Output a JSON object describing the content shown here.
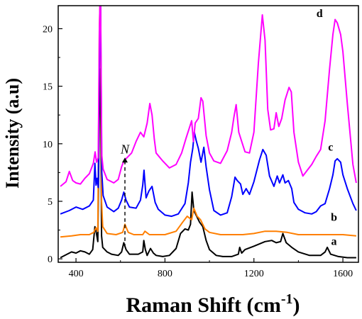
{
  "chart_data": {
    "type": "line",
    "xlabel": "Raman Shift (cm",
    "xlabel_sup": "-1",
    "xlabel_close": ")",
    "ylabel": "Intensity (a.u)",
    "xlim": [
      320,
      1670
    ],
    "ylim": [
      -0.3,
      22
    ],
    "xticks": [
      400,
      800,
      1200,
      1600
    ],
    "yticks": [
      0,
      5,
      10,
      15,
      20
    ],
    "grid": false,
    "colors": {
      "a": "#000000",
      "b": "#ff7f00",
      "c": "#0000ff",
      "d": "#ff00ff"
    },
    "annotation": {
      "label": "N",
      "x": 620,
      "y_from": 1.0,
      "y_to": 8.8
    },
    "series": [
      {
        "name": "a",
        "x": [
          330,
          360,
          380,
          400,
          420,
          440,
          460,
          475,
          485,
          492,
          498,
          505,
          510,
          515,
          520,
          540,
          560,
          590,
          605,
          615,
          625,
          640,
          680,
          700,
          705,
          712,
          720,
          735,
          748,
          760,
          790,
          820,
          850,
          870,
          890,
          905,
          915,
          922,
          930,
          940,
          955,
          970,
          985,
          1000,
          1030,
          1060,
          1100,
          1130,
          1136,
          1145,
          1160,
          1200,
          1250,
          1280,
          1300,
          1320,
          1330,
          1345,
          1370,
          1400,
          1450,
          1500,
          1520,
          1530,
          1545,
          1580,
          1620,
          1660
        ],
        "y": [
          0.1,
          0.4,
          0.6,
          0.5,
          0.7,
          0.6,
          0.4,
          0.8,
          2.8,
          2.2,
          1.5,
          13.0,
          16.5,
          2.0,
          1.0,
          0.6,
          0.4,
          0.3,
          0.6,
          1.4,
          0.8,
          0.4,
          0.4,
          0.6,
          1.6,
          0.8,
          0.3,
          0.9,
          0.5,
          0.3,
          0.2,
          0.3,
          0.9,
          2.2,
          2.6,
          2.5,
          3.0,
          5.8,
          4.2,
          3.8,
          3.2,
          2.8,
          1.6,
          0.8,
          0.3,
          0.2,
          0.2,
          0.4,
          1.0,
          0.5,
          0.8,
          1.1,
          1.5,
          1.6,
          1.4,
          1.5,
          2.2,
          1.4,
          1.0,
          0.6,
          0.3,
          0.3,
          0.6,
          1.0,
          0.4,
          0.2,
          0.1,
          0.1
        ]
      },
      {
        "name": "b",
        "x": [
          330,
          380,
          420,
          460,
          480,
          490,
          498,
          505,
          510,
          515,
          520,
          540,
          580,
          610,
          620,
          635,
          660,
          700,
          710,
          730,
          760,
          800,
          850,
          880,
          900,
          920,
          930,
          945,
          960,
          980,
          1000,
          1050,
          1100,
          1150,
          1200,
          1250,
          1300,
          1350,
          1400,
          1450,
          1500,
          1550,
          1600,
          1660
        ],
        "y": [
          1.9,
          2.0,
          2.1,
          2.1,
          2.3,
          2.7,
          2.4,
          20.0,
          24.0,
          5.0,
          2.8,
          2.2,
          2.1,
          2.3,
          3.0,
          2.3,
          2.1,
          2.1,
          2.4,
          2.1,
          2.1,
          2.1,
          2.4,
          3.2,
          3.7,
          3.4,
          4.4,
          3.7,
          3.4,
          2.6,
          2.3,
          2.1,
          2.1,
          2.1,
          2.2,
          2.4,
          2.4,
          2.3,
          2.1,
          2.1,
          2.1,
          2.1,
          2.1,
          2.0
        ]
      },
      {
        "name": "c",
        "x": [
          330,
          370,
          400,
          430,
          460,
          478,
          485,
          490,
          495,
          500,
          505,
          510,
          516,
          522,
          540,
          570,
          590,
          605,
          615,
          625,
          640,
          670,
          690,
          700,
          706,
          715,
          728,
          742,
          756,
          770,
          800,
          830,
          860,
          890,
          905,
          915,
          925,
          932,
          940,
          950,
          962,
          975,
          985,
          1000,
          1020,
          1050,
          1080,
          1100,
          1115,
          1125,
          1140,
          1150,
          1165,
          1180,
          1200,
          1225,
          1240,
          1255,
          1270,
          1290,
          1305,
          1315,
          1330,
          1340,
          1355,
          1370,
          1380,
          1400,
          1430,
          1460,
          1480,
          1500,
          1520,
          1540,
          1555,
          1565,
          1575,
          1590,
          1600,
          1620,
          1645,
          1660
        ],
        "y": [
          3.9,
          4.2,
          4.5,
          4.3,
          4.6,
          5.1,
          8.3,
          6.4,
          7.0,
          6.2,
          17.0,
          24.0,
          7.5,
          5.5,
          4.5,
          4.1,
          4.4,
          5.1,
          5.8,
          5.1,
          4.5,
          4.4,
          5.1,
          6.4,
          7.7,
          5.3,
          5.9,
          6.3,
          4.9,
          4.3,
          3.8,
          3.7,
          3.9,
          4.8,
          6.6,
          8.4,
          9.6,
          11.0,
          10.3,
          9.6,
          8.4,
          9.7,
          8.0,
          6.0,
          4.2,
          3.8,
          4.0,
          5.4,
          7.1,
          6.8,
          6.5,
          5.6,
          6.1,
          5.6,
          6.7,
          8.6,
          9.5,
          9.0,
          7.2,
          6.3,
          7.2,
          6.6,
          7.3,
          6.6,
          6.8,
          6.1,
          4.9,
          4.3,
          4.0,
          3.9,
          4.1,
          4.6,
          4.8,
          6.1,
          7.3,
          8.5,
          8.7,
          8.4,
          7.3,
          6.1,
          4.8,
          4.2
        ]
      },
      {
        "name": "d",
        "x": [
          330,
          355,
          370,
          385,
          400,
          420,
          440,
          460,
          478,
          486,
          492,
          500,
          505,
          510,
          516,
          522,
          540,
          570,
          590,
          605,
          615,
          630,
          650,
          670,
          690,
          705,
          720,
          732,
          742,
          752,
          760,
          790,
          820,
          850,
          875,
          895,
          910,
          920,
          928,
          936,
          950,
          962,
          970,
          985,
          1000,
          1020,
          1050,
          1080,
          1100,
          1110,
          1120,
          1132,
          1145,
          1160,
          1180,
          1200,
          1220,
          1238,
          1250,
          1262,
          1275,
          1290,
          1300,
          1312,
          1325,
          1340,
          1358,
          1368,
          1380,
          1400,
          1420,
          1440,
          1460,
          1480,
          1500,
          1520,
          1540,
          1555,
          1565,
          1575,
          1590,
          1600,
          1620,
          1645,
          1660
        ],
        "y": [
          6.3,
          6.7,
          7.6,
          6.8,
          6.6,
          6.5,
          7.0,
          7.4,
          8.3,
          9.3,
          8.4,
          8.8,
          20.0,
          24.0,
          9.0,
          7.8,
          6.9,
          6.6,
          6.9,
          8.0,
          8.5,
          8.8,
          9.2,
          10.2,
          11.0,
          10.6,
          11.8,
          13.5,
          12.5,
          10.4,
          9.2,
          8.5,
          7.9,
          8.2,
          9.2,
          10.5,
          11.4,
          12.0,
          10.2,
          11.8,
          12.2,
          14.0,
          13.7,
          10.7,
          9.2,
          8.5,
          8.3,
          9.4,
          11.0,
          12.3,
          13.4,
          11.0,
          10.2,
          9.3,
          9.2,
          11.0,
          17.0,
          21.2,
          19.0,
          13.0,
          11.2,
          11.3,
          12.7,
          11.5,
          12.2,
          13.8,
          14.9,
          14.5,
          11.0,
          8.4,
          7.2,
          7.7,
          8.2,
          8.9,
          9.5,
          12.0,
          16.5,
          19.5,
          20.8,
          20.5,
          19.5,
          18.0,
          13.5,
          8.2,
          6.6
        ]
      }
    ]
  }
}
